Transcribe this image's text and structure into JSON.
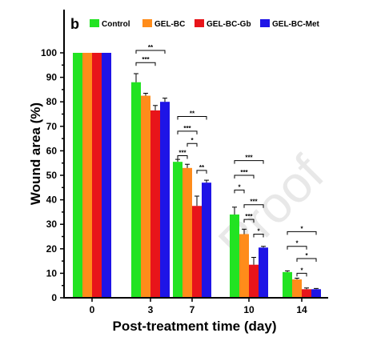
{
  "panel_label": "b",
  "watermark": "Proof",
  "chart_data": {
    "type": "bar",
    "title": "",
    "xlabel": "Post-treatment time (day)",
    "ylabel": "Wound area (%)",
    "ylim": [
      0,
      110
    ],
    "y_ticks": [
      "0",
      "10",
      "20",
      "30",
      "40",
      "50",
      "60",
      "70",
      "80",
      "90",
      "100"
    ],
    "categories": [
      "0",
      "3",
      "7",
      "10",
      "14"
    ],
    "legend_position": "top",
    "grid": false,
    "series": [
      {
        "name": "Control",
        "color": "#22e322",
        "values": [
          100,
          88,
          55.5,
          34,
          10.5
        ],
        "errors": [
          0,
          3.5,
          1,
          3,
          0.5
        ]
      },
      {
        "name": "GEL-BC",
        "color": "#ff8c1a",
        "values": [
          100,
          82.5,
          53,
          26,
          7.5
        ],
        "errors": [
          0,
          1,
          1.5,
          2,
          0.5
        ]
      },
      {
        "name": "GEL-BC-Gb",
        "color": "#e8141a",
        "values": [
          100,
          76.5,
          37.5,
          13.5,
          3.5
        ],
        "errors": [
          0,
          2,
          4,
          3,
          0.5
        ]
      },
      {
        "name": "GEL-BC-Met",
        "color": "#1e14e6",
        "values": [
          100,
          80,
          47,
          20.5,
          3.5
        ],
        "errors": [
          0,
          1.5,
          1,
          0.5,
          0.3
        ]
      }
    ],
    "significance": [
      {
        "category": 1,
        "from": 0,
        "to": 3,
        "label": "**",
        "y": 101
      },
      {
        "category": 1,
        "from": 0,
        "to": 2,
        "label": "***",
        "y": 96
      },
      {
        "category": 2,
        "from": 0,
        "to": 3,
        "label": "**",
        "y": 74
      },
      {
        "category": 2,
        "from": 0,
        "to": 2,
        "label": "***",
        "y": 68
      },
      {
        "category": 2,
        "from": 1,
        "to": 2,
        "label": "*",
        "y": 63
      },
      {
        "category": 2,
        "from": 0,
        "to": 1,
        "label": "***",
        "y": 58
      },
      {
        "category": 2,
        "from": 2,
        "to": 3,
        "label": "**",
        "y": 52
      },
      {
        "category": 3,
        "from": 0,
        "to": 3,
        "label": "***",
        "y": 56
      },
      {
        "category": 3,
        "from": 0,
        "to": 2,
        "label": "***",
        "y": 50
      },
      {
        "category": 3,
        "from": 0,
        "to": 1,
        "label": "*",
        "y": 44
      },
      {
        "category": 3,
        "from": 1,
        "to": 3,
        "label": "***",
        "y": 38
      },
      {
        "category": 3,
        "from": 1,
        "to": 2,
        "label": "***",
        "y": 32
      },
      {
        "category": 3,
        "from": 2,
        "to": 3,
        "label": "*",
        "y": 26
      },
      {
        "category": 4,
        "from": 0,
        "to": 3,
        "label": "*",
        "y": 27
      },
      {
        "category": 4,
        "from": 0,
        "to": 2,
        "label": "*",
        "y": 21
      },
      {
        "category": 4,
        "from": 1,
        "to": 3,
        "label": "*",
        "y": 16
      },
      {
        "category": 4,
        "from": 1,
        "to": 2,
        "label": "*",
        "y": 10
      }
    ]
  }
}
